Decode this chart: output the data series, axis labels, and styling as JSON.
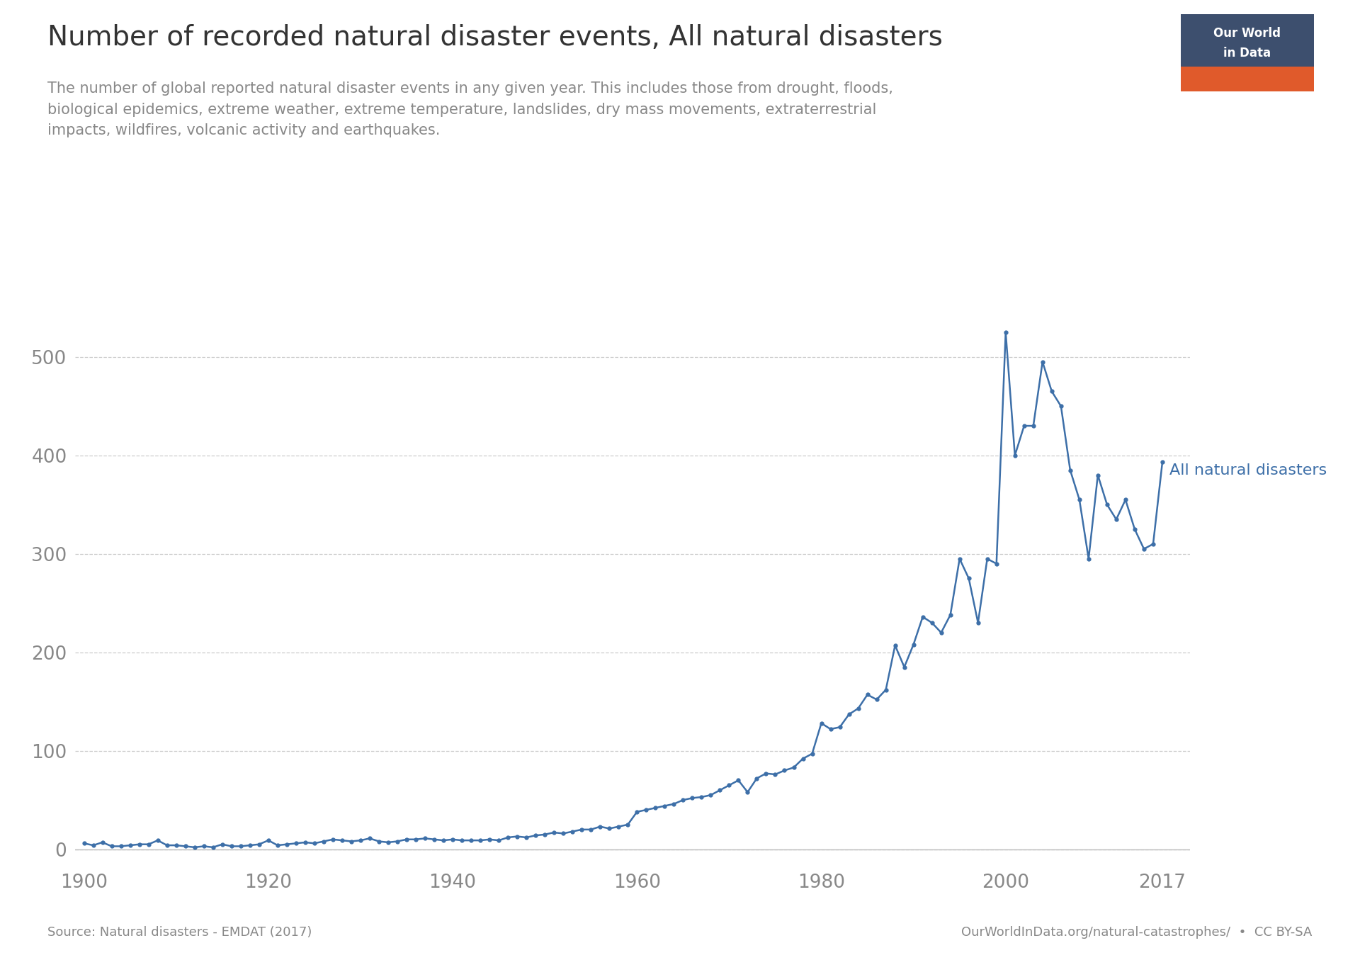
{
  "title": "Number of recorded natural disaster events, All natural disasters",
  "subtitle": "The number of global reported natural disaster events in any given year. This includes those from drought, floods,\nbiological epidemics, extreme weather, extreme temperature, landslides, dry mass movements, extraterrestrial\nimpacts, wildfires, volcanic activity and earthquakes.",
  "source_left": "Source: Natural disasters - EMDAT (2017)",
  "source_right": "OurWorldInData.org/natural-catastrophes/  •  CC BY-SA",
  "line_label": "All natural disasters",
  "line_color": "#3d6fa8",
  "label_color": "#3d6fa8",
  "bg_color": "#ffffff",
  "grid_color": "#cccccc",
  "title_color": "#333333",
  "subtitle_color": "#888888",
  "source_color": "#888888",
  "owid_box_top": "#3d4f6e",
  "owid_box_bottom": "#e05a2b",
  "years": [
    1900,
    1901,
    1902,
    1903,
    1904,
    1905,
    1906,
    1907,
    1908,
    1909,
    1910,
    1911,
    1912,
    1913,
    1914,
    1915,
    1916,
    1917,
    1918,
    1919,
    1920,
    1921,
    1922,
    1923,
    1924,
    1925,
    1926,
    1927,
    1928,
    1929,
    1930,
    1931,
    1932,
    1933,
    1934,
    1935,
    1936,
    1937,
    1938,
    1939,
    1940,
    1941,
    1942,
    1943,
    1944,
    1945,
    1946,
    1947,
    1948,
    1949,
    1950,
    1951,
    1952,
    1953,
    1954,
    1955,
    1956,
    1957,
    1958,
    1959,
    1960,
    1961,
    1962,
    1963,
    1964,
    1965,
    1966,
    1967,
    1968,
    1969,
    1970,
    1971,
    1972,
    1973,
    1974,
    1975,
    1976,
    1977,
    1978,
    1979,
    1980,
    1981,
    1982,
    1983,
    1984,
    1985,
    1986,
    1987,
    1988,
    1989,
    1990,
    1991,
    1992,
    1993,
    1994,
    1995,
    1996,
    1997,
    1998,
    1999,
    2000,
    2001,
    2002,
    2003,
    2004,
    2005,
    2006,
    2007,
    2008,
    2009,
    2010,
    2011,
    2012,
    2013,
    2014,
    2015,
    2016,
    2017
  ],
  "values": [
    6,
    4,
    7,
    3,
    3,
    4,
    5,
    5,
    9,
    4,
    4,
    3,
    2,
    3,
    2,
    5,
    3,
    3,
    4,
    5,
    9,
    4,
    5,
    6,
    7,
    6,
    8,
    10,
    9,
    8,
    9,
    11,
    8,
    7,
    8,
    10,
    10,
    11,
    10,
    9,
    10,
    9,
    9,
    9,
    10,
    9,
    12,
    13,
    12,
    14,
    15,
    17,
    16,
    18,
    20,
    20,
    23,
    21,
    23,
    25,
    38,
    40,
    42,
    44,
    46,
    50,
    52,
    53,
    55,
    60,
    65,
    70,
    58,
    72,
    77,
    76,
    80,
    83,
    92,
    97,
    128,
    122,
    124,
    137,
    143,
    157,
    152,
    162,
    207,
    185,
    208,
    236,
    230,
    220,
    238,
    295,
    275,
    230,
    295,
    290,
    525,
    400,
    430,
    430,
    495,
    465,
    450,
    385,
    355,
    295,
    380,
    350,
    335,
    355,
    325,
    305,
    310,
    393
  ],
  "yticks": [
    0,
    100,
    200,
    300,
    400,
    500
  ],
  "xticks": [
    1900,
    1920,
    1940,
    1960,
    1980,
    2000,
    2017
  ],
  "ylim": [
    -15,
    570
  ],
  "xlim": [
    1899,
    2020
  ]
}
